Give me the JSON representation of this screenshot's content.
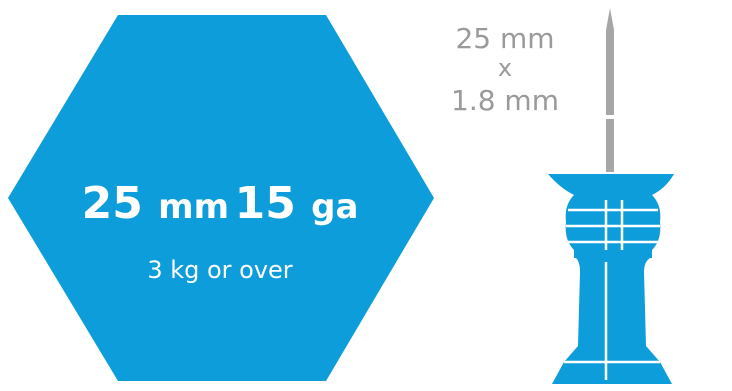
{
  "hexagon": {
    "length": "25 mm",
    "gauge": "15 ga",
    "weight_note": "3 kg or over",
    "color": "#0d9ddb"
  },
  "needle_size": {
    "length": "25 mm",
    "separator": "x",
    "diameter": "1.8 mm",
    "text_color": "#9a9a9a"
  },
  "device": {
    "body_color": "#0d9ddb",
    "needle_color": "#a6a6a6",
    "line_color": "#ffffff",
    "icon": "intraosseous-needle-icon"
  }
}
